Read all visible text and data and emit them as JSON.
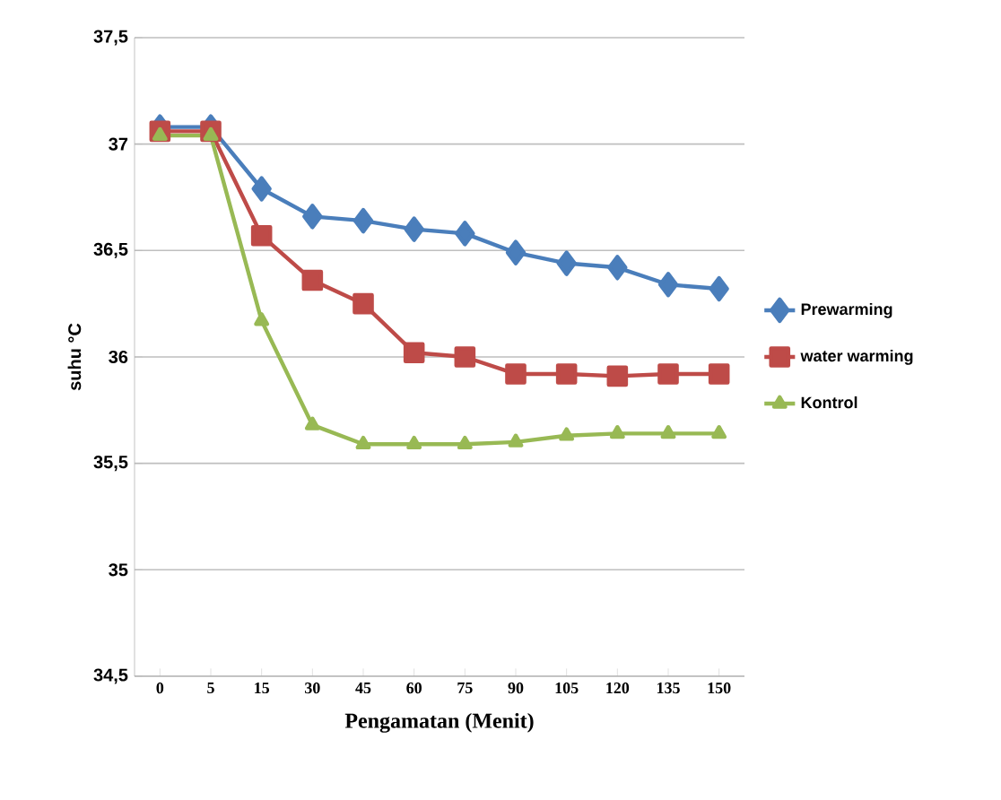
{
  "chart_data": {
    "type": "line",
    "xlabel": "Pengamatan (Menit)",
    "ylabel": "suhu °C",
    "categories": [
      "0",
      "5",
      "15",
      "30",
      "45",
      "60",
      "75",
      "90",
      "105",
      "120",
      "135",
      "150"
    ],
    "series": [
      {
        "name": "Prewarming",
        "color": "#4a7ebb",
        "marker": "diamond",
        "values": [
          37.08,
          37.08,
          36.79,
          36.66,
          36.64,
          36.6,
          36.58,
          36.49,
          36.44,
          36.42,
          36.34,
          36.32
        ]
      },
      {
        "name": "water warming",
        "color": "#be4b48",
        "marker": "square",
        "values": [
          37.06,
          37.06,
          36.57,
          36.36,
          36.25,
          36.02,
          36.0,
          35.92,
          35.92,
          35.91,
          35.92,
          35.92
        ]
      },
      {
        "name": "Kontrol",
        "color": "#98b954",
        "marker": "triangle",
        "values": [
          37.04,
          37.04,
          36.17,
          35.68,
          35.59,
          35.59,
          35.59,
          35.6,
          35.63,
          35.64,
          35.64,
          35.64
        ]
      }
    ],
    "ylim": [
      34.5,
      37.5
    ],
    "yticks": [
      {
        "value": 34.5,
        "label": "34,5"
      },
      {
        "value": 35,
        "label": "35"
      },
      {
        "value": 35.5,
        "label": "35,5"
      },
      {
        "value": 36,
        "label": "36"
      },
      {
        "value": 36.5,
        "label": "36,5"
      },
      {
        "value": 37,
        "label": "37"
      },
      {
        "value": 37.5,
        "label": "37,5"
      }
    ],
    "grid": "y",
    "legend": "right",
    "line_style": "solid"
  }
}
